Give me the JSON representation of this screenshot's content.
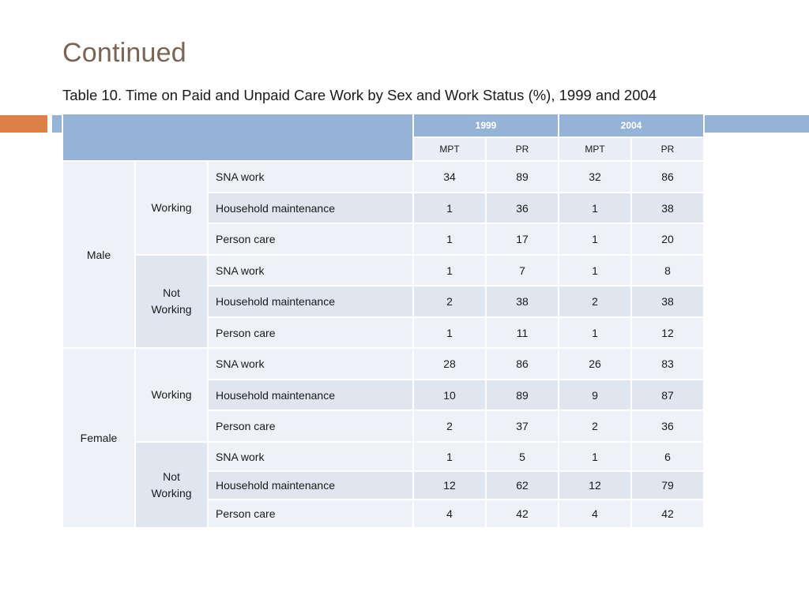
{
  "slide": {
    "title": "Continued",
    "caption": "Table 10. Time on Paid and Unpaid Care Work by Sex and Work Status (%), 1999 and 2004"
  },
  "colors": {
    "accent_orange": "#dd8047",
    "accent_blue": "#95b3d7",
    "title_brown": "#7a6456"
  },
  "table": {
    "years": [
      "1999",
      "2004"
    ],
    "subheaders": [
      "MPT",
      "PR",
      "MPT",
      "PR"
    ],
    "groups": [
      {
        "sex": "Male",
        "statuses": [
          {
            "label_lines": [
              "Working"
            ],
            "rows": [
              {
                "category": "SNA work",
                "values": [
                  "34",
                  "89",
                  "32",
                  "86"
                ]
              },
              {
                "category": "Household maintenance",
                "values": [
                  "1",
                  "36",
                  "1",
                  "38"
                ]
              },
              {
                "category": "Person care",
                "values": [
                  "1",
                  "17",
                  "1",
                  "20"
                ]
              }
            ]
          },
          {
            "label_lines": [
              "Not",
              "Working"
            ],
            "rows": [
              {
                "category": "SNA work",
                "values": [
                  "1",
                  "7",
                  "1",
                  "8"
                ]
              },
              {
                "category": "Household maintenance",
                "values": [
                  "2",
                  "38",
                  "2",
                  "38"
                ]
              },
              {
                "category": "Person care",
                "values": [
                  "1",
                  "11",
                  "1",
                  "12"
                ]
              }
            ]
          }
        ]
      },
      {
        "sex": "Female",
        "statuses": [
          {
            "label_lines": [
              "Working"
            ],
            "rows": [
              {
                "category": "SNA work",
                "values": [
                  "28",
                  "86",
                  "26",
                  "83"
                ]
              },
              {
                "category": "Household maintenance",
                "values": [
                  "10",
                  "89",
                  "9",
                  "87"
                ]
              },
              {
                "category": "Person care",
                "values": [
                  "2",
                  "37",
                  "2",
                  "36"
                ]
              }
            ]
          },
          {
            "label_lines": [
              "Not",
              "Working"
            ],
            "rows": [
              {
                "category": "SNA work",
                "values": [
                  "1",
                  "5",
                  "1",
                  "6"
                ]
              },
              {
                "category": "Household maintenance",
                "values": [
                  "12",
                  "62",
                  "12",
                  "79"
                ]
              },
              {
                "category": "Person care",
                "values": [
                  "4",
                  "42",
                  "4",
                  "42"
                ]
              }
            ]
          }
        ]
      }
    ]
  }
}
